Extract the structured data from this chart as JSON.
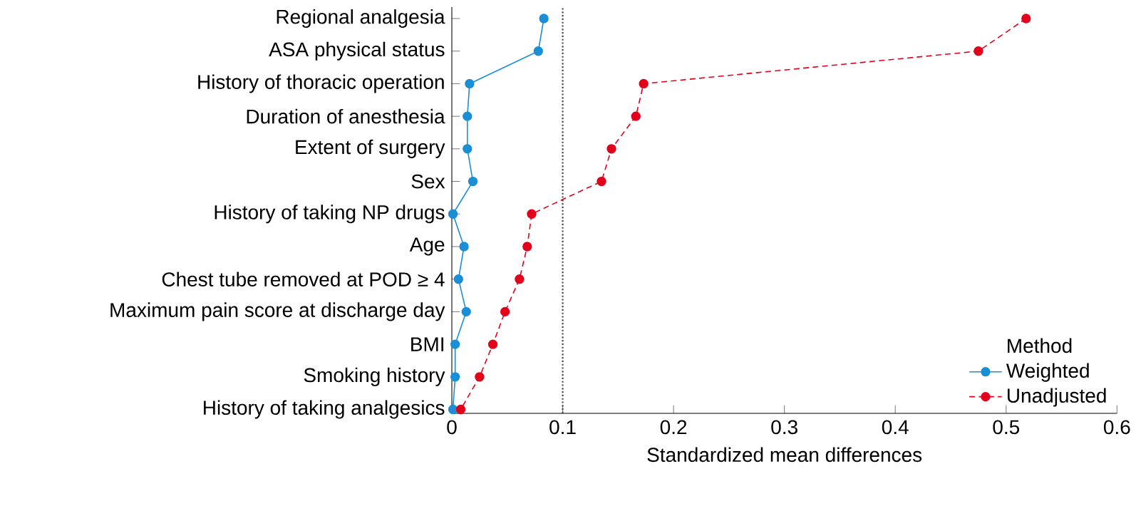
{
  "chart_data": {
    "type": "line",
    "xlabel": "Standardized mean differences",
    "legend_title": "Method",
    "categories": [
      "Regional analgesia",
      "ASA physical status",
      "History of thoracic operation",
      "Duration of anesthesia",
      "Extent of surgery",
      "Sex",
      "History of taking NP drugs",
      "Age",
      "Chest tube removed at POD ≥ 4",
      "Maximum pain score at discharge day",
      "BMI",
      "Smoking history",
      "History of taking analgesics"
    ],
    "series": [
      {
        "name": "Weighted",
        "color": "#1a8fd6",
        "line_style": "solid",
        "values": [
          0.083,
          0.078,
          0.016,
          0.014,
          0.014,
          0.019,
          0.001,
          0.011,
          0.006,
          0.013,
          0.003,
          0.003,
          0.001
        ]
      },
      {
        "name": "Unadjusted",
        "color": "#e3001b",
        "line_style": "dashed",
        "values": [
          0.518,
          0.475,
          0.173,
          0.166,
          0.144,
          0.135,
          0.072,
          0.068,
          0.061,
          0.048,
          0.037,
          0.025,
          0.008
        ]
      }
    ],
    "orientation": "horizontal",
    "xlim": [
      0,
      0.6
    ],
    "xticks": [
      0,
      0.1,
      0.2,
      0.3,
      0.4,
      0.5,
      0.6
    ],
    "ref_lines": [
      {
        "axis": "x",
        "value": 0.1,
        "color": "#404040",
        "line_style": "dotted"
      }
    ],
    "marker": "circle",
    "legend": "bottom right",
    "grid": false
  }
}
